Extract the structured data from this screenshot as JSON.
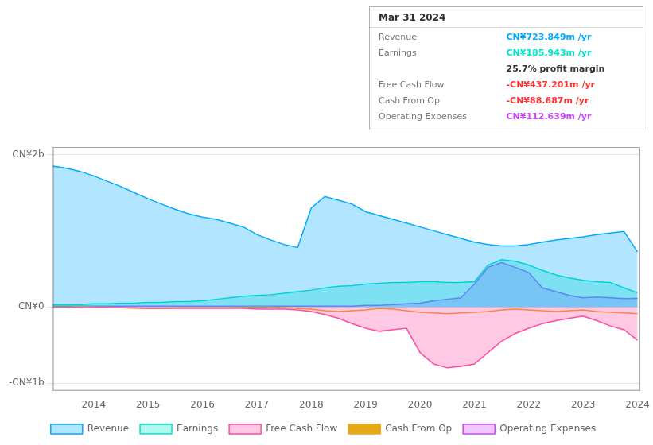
{
  "chart_data": {
    "type": "line",
    "x": [
      2013.25,
      2013.5,
      2013.75,
      2014.0,
      2014.25,
      2014.5,
      2014.75,
      2015.0,
      2015.25,
      2015.5,
      2015.75,
      2016.0,
      2016.25,
      2016.5,
      2016.75,
      2017.0,
      2017.25,
      2017.5,
      2017.75,
      2018.0,
      2018.25,
      2018.5,
      2018.75,
      2019.0,
      2019.25,
      2019.5,
      2019.75,
      2020.0,
      2020.25,
      2020.5,
      2020.75,
      2021.0,
      2021.25,
      2021.5,
      2021.75,
      2022.0,
      2022.25,
      2022.5,
      2022.75,
      2023.0,
      2023.25,
      2023.5,
      2023.75,
      2024.0
    ],
    "series": [
      {
        "name": "Revenue",
        "type": "area",
        "color": "#00aaff",
        "values": [
          1.85,
          1.82,
          1.78,
          1.72,
          1.65,
          1.58,
          1.5,
          1.42,
          1.35,
          1.28,
          1.22,
          1.18,
          1.15,
          1.1,
          1.05,
          0.95,
          0.88,
          0.82,
          0.78,
          1.3,
          1.45,
          1.4,
          1.35,
          1.25,
          1.2,
          1.15,
          1.1,
          1.05,
          1.0,
          0.95,
          0.9,
          0.85,
          0.82,
          0.8,
          0.8,
          0.82,
          0.85,
          0.88,
          0.9,
          0.92,
          0.95,
          0.97,
          0.99,
          0.724
        ]
      },
      {
        "name": "Earnings",
        "type": "area",
        "color": "#00e6c8",
        "values": [
          0.03,
          0.03,
          0.03,
          0.04,
          0.04,
          0.05,
          0.05,
          0.06,
          0.06,
          0.07,
          0.07,
          0.08,
          0.1,
          0.12,
          0.14,
          0.15,
          0.16,
          0.18,
          0.2,
          0.22,
          0.25,
          0.27,
          0.28,
          0.3,
          0.31,
          0.32,
          0.32,
          0.33,
          0.33,
          0.32,
          0.32,
          0.33,
          0.55,
          0.62,
          0.6,
          0.55,
          0.48,
          0.42,
          0.38,
          0.35,
          0.33,
          0.32,
          0.25,
          0.186
        ]
      },
      {
        "name": "Free Cash Flow",
        "type": "area",
        "color": "#ff4da6",
        "values": [
          0.0,
          0.0,
          -0.01,
          -0.01,
          -0.01,
          -0.01,
          -0.01,
          -0.02,
          -0.02,
          -0.02,
          -0.02,
          -0.02,
          -0.02,
          -0.02,
          -0.02,
          -0.03,
          -0.03,
          -0.03,
          -0.04,
          -0.06,
          -0.1,
          -0.15,
          -0.22,
          -0.28,
          -0.32,
          -0.3,
          -0.28,
          -0.6,
          -0.75,
          -0.8,
          -0.78,
          -0.75,
          -0.6,
          -0.45,
          -0.35,
          -0.28,
          -0.22,
          -0.18,
          -0.15,
          -0.12,
          -0.18,
          -0.25,
          -0.3,
          -0.437
        ]
      },
      {
        "name": "Cash From Op",
        "type": "line",
        "color": "#e6a817",
        "values": [
          0.01,
          0.01,
          0.01,
          0.0,
          0.0,
          -0.01,
          -0.02,
          -0.02,
          -0.02,
          -0.01,
          -0.01,
          -0.01,
          -0.01,
          -0.01,
          0.0,
          0.0,
          0.0,
          -0.01,
          -0.02,
          -0.03,
          -0.05,
          -0.06,
          -0.05,
          -0.04,
          -0.02,
          -0.03,
          -0.05,
          -0.07,
          -0.08,
          -0.09,
          -0.08,
          -0.07,
          -0.06,
          -0.04,
          -0.03,
          -0.04,
          -0.05,
          -0.06,
          -0.05,
          -0.04,
          -0.06,
          -0.07,
          -0.08,
          -0.089
        ]
      },
      {
        "name": "Operating Expenses",
        "type": "area",
        "color": "#cc44ff",
        "values": [
          0.01,
          0.01,
          0.01,
          0.01,
          0.01,
          0.01,
          0.01,
          0.01,
          0.01,
          0.01,
          0.01,
          0.01,
          0.01,
          0.01,
          0.01,
          0.01,
          0.01,
          0.01,
          0.01,
          0.01,
          0.01,
          0.01,
          0.01,
          0.02,
          0.02,
          0.03,
          0.04,
          0.05,
          0.08,
          0.1,
          0.12,
          0.3,
          0.52,
          0.58,
          0.52,
          0.45,
          0.25,
          0.2,
          0.15,
          0.12,
          0.13,
          0.12,
          0.11,
          0.113
        ]
      }
    ],
    "xlim": [
      2013.25,
      2024.05
    ],
    "xticks": [
      2014,
      2015,
      2016,
      2017,
      2018,
      2019,
      2020,
      2021,
      2022,
      2023,
      2024
    ],
    "ylim": [
      -1.1,
      2.1
    ],
    "yticks": [
      {
        "value": 2.0,
        "label": "CN¥2b"
      },
      {
        "value": 0.0,
        "label": "CN¥0"
      },
      {
        "value": -1.0,
        "label": "-CN¥1b"
      }
    ],
    "grid": true,
    "legend": "bottom",
    "annotations": [
      {
        "text": "Mar 31 2024"
      },
      {
        "label": "Revenue",
        "text": "CN¥723.849m /yr",
        "color": "#00aaff"
      },
      {
        "label": "Earnings",
        "text": "CN¥185.943m /yr",
        "color": "#00e6c8"
      },
      {
        "text": "25.7% profit margin"
      },
      {
        "label": "Free Cash Flow",
        "text": "-CN¥437.201m /yr",
        "color": "#ff3333"
      },
      {
        "label": "Cash From Op",
        "text": "-CN¥88.687m /yr",
        "color": "#ff3333"
      },
      {
        "label": "Operating Expenses",
        "text": "CN¥112.639m /yr",
        "color": "#cc44ff"
      }
    ]
  }
}
